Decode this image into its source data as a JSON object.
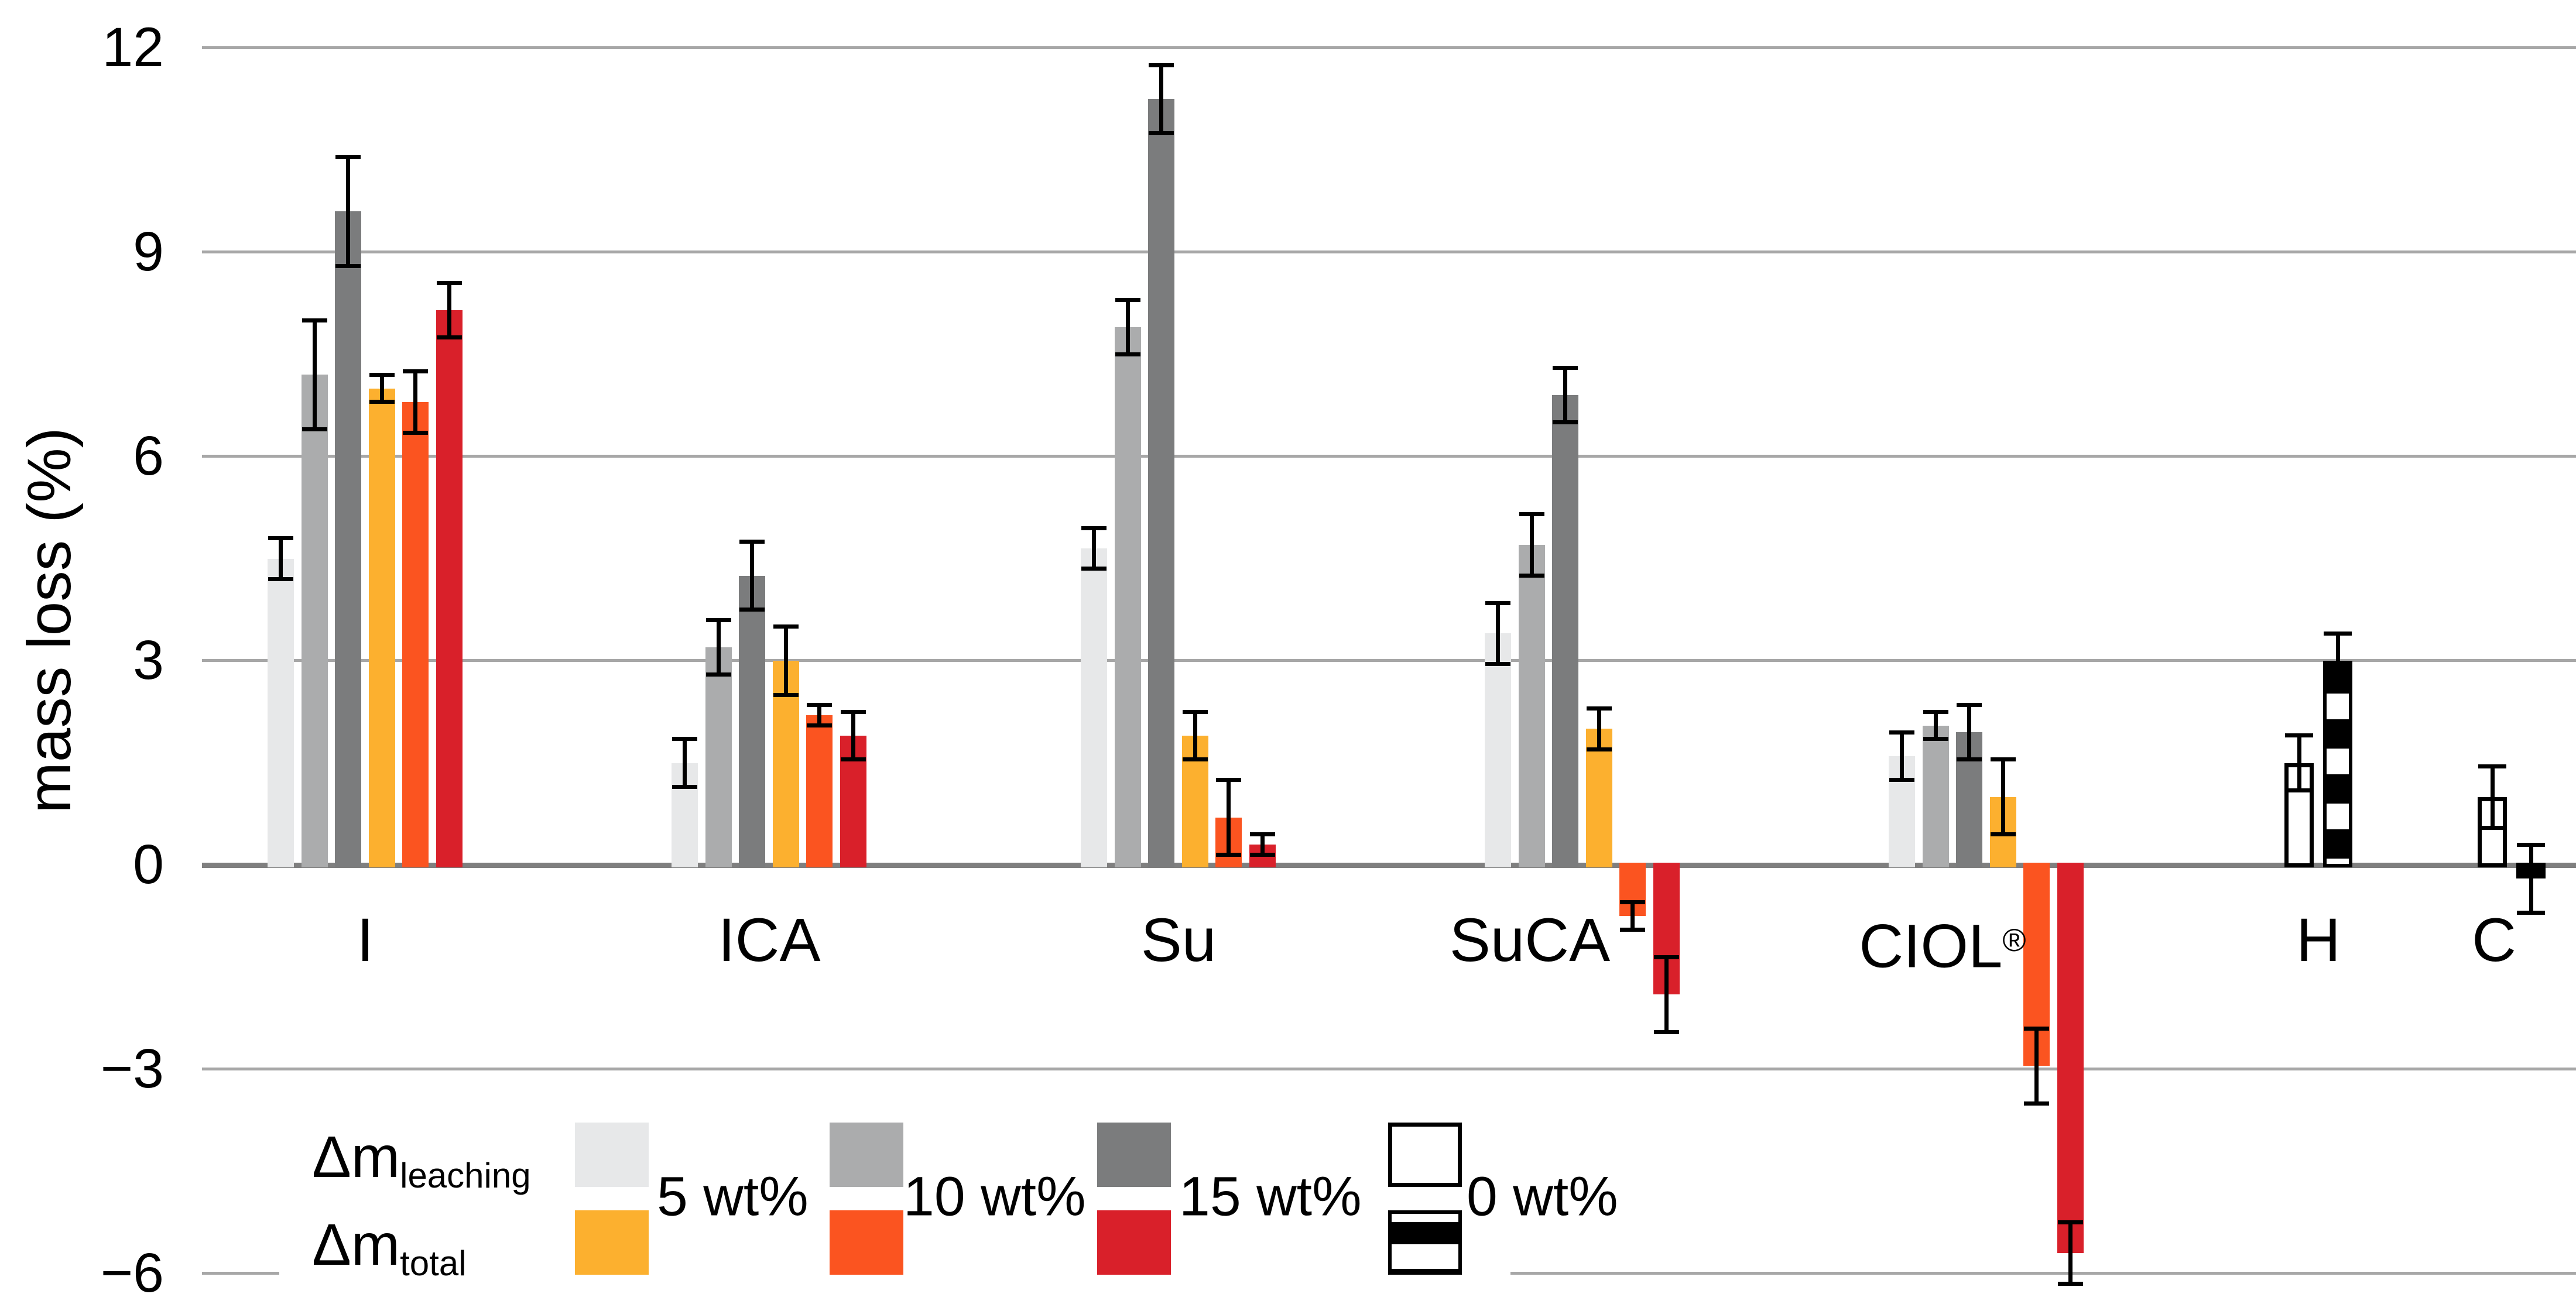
{
  "chart_data": {
    "type": "bar",
    "title": "",
    "xlabel": "",
    "ylabel": "mass loss (%)",
    "ylim": [
      -6.6,
      12.6
    ],
    "grid": true,
    "legend_position": "bottom-left",
    "yticks": [
      {
        "v": 12,
        "label": "12"
      },
      {
        "v": 9,
        "label": "9"
      },
      {
        "v": 6,
        "label": "6"
      },
      {
        "v": 3,
        "label": "3"
      },
      {
        "v": 0,
        "label": "0"
      },
      {
        "v": -3,
        "label": "−3"
      },
      {
        "v": -6,
        "label": "−6"
      }
    ],
    "series": [
      {
        "id": "leaching-5",
        "name": "Δm leaching, 5 wt%",
        "color": "#E7E8E9",
        "style": "solid"
      },
      {
        "id": "leaching-10",
        "name": "Δm leaching, 10 wt%",
        "color": "#ABACAD",
        "style": "solid"
      },
      {
        "id": "leaching-15",
        "name": "Δm leaching, 15 wt%",
        "color": "#7B7C7D",
        "style": "solid"
      },
      {
        "id": "total-5",
        "name": "Δm total, 5 wt%",
        "color": "#FCB02F",
        "style": "solid"
      },
      {
        "id": "total-10",
        "name": "Δm total, 10 wt%",
        "color": "#FB5420",
        "style": "solid"
      },
      {
        "id": "total-15",
        "name": "Δm total, 15 wt%",
        "color": "#D9202A",
        "style": "solid"
      },
      {
        "id": "leaching-0",
        "name": "Δm leaching, 0 wt%",
        "color": "#FFFFFF",
        "style": "outline"
      },
      {
        "id": "total-0",
        "name": "Δm total, 0 wt%",
        "color": "#000000",
        "style": "stripes"
      }
    ],
    "groups": [
      {
        "label": "I",
        "bars": [
          {
            "series": "leaching-5",
            "value": 4.5,
            "error": 0.3
          },
          {
            "series": "leaching-10",
            "value": 7.2,
            "error": 0.8
          },
          {
            "series": "leaching-15",
            "value": 9.6,
            "error": 0.8
          },
          {
            "series": "total-5",
            "value": 7.0,
            "error": 0.2
          },
          {
            "series": "total-10",
            "value": 6.8,
            "error": 0.45
          },
          {
            "series": "total-15",
            "value": 8.15,
            "error": 0.4
          }
        ]
      },
      {
        "label": "ICA",
        "bars": [
          {
            "series": "leaching-5",
            "value": 1.5,
            "error": 0.35
          },
          {
            "series": "leaching-10",
            "value": 3.2,
            "error": 0.4
          },
          {
            "series": "leaching-15",
            "value": 4.25,
            "error": 0.5
          },
          {
            "series": "total-5",
            "value": 3.0,
            "error": 0.5
          },
          {
            "series": "total-10",
            "value": 2.2,
            "error": 0.15
          },
          {
            "series": "total-15",
            "value": 1.9,
            "error": 0.35
          }
        ]
      },
      {
        "label": "Su",
        "bars": [
          {
            "series": "leaching-5",
            "value": 4.65,
            "error": 0.3
          },
          {
            "series": "leaching-10",
            "value": 7.9,
            "error": 0.4
          },
          {
            "series": "leaching-15",
            "value": 11.25,
            "error": 0.5
          },
          {
            "series": "total-5",
            "value": 1.9,
            "error": 0.35
          },
          {
            "series": "total-10",
            "value": 0.7,
            "error": 0.55
          },
          {
            "series": "total-15",
            "value": 0.3,
            "error": 0.15
          }
        ]
      },
      {
        "label": "SuCA",
        "bars": [
          {
            "series": "leaching-5",
            "value": 3.4,
            "error": 0.45
          },
          {
            "series": "leaching-10",
            "value": 4.7,
            "error": 0.45
          },
          {
            "series": "leaching-15",
            "value": 6.9,
            "error": 0.4
          },
          {
            "series": "total-5",
            "value": 2.0,
            "error": 0.3
          },
          {
            "series": "total-10",
            "value": -0.75,
            "error": 0.2
          },
          {
            "series": "total-15",
            "value": -1.9,
            "error": 0.55
          }
        ]
      },
      {
        "label": "CIOL",
        "label_sup": "®",
        "bars": [
          {
            "series": "leaching-5",
            "value": 1.6,
            "error": 0.35
          },
          {
            "series": "leaching-10",
            "value": 2.05,
            "error": 0.2
          },
          {
            "series": "leaching-15",
            "value": 1.95,
            "error": 0.4
          },
          {
            "series": "total-5",
            "value": 1.0,
            "error": 0.55
          },
          {
            "series": "total-10",
            "value": -2.95,
            "error": 0.55
          },
          {
            "series": "total-15",
            "value": -5.7,
            "error": 0.45
          }
        ]
      },
      {
        "label": "H",
        "bars": [
          {
            "series": "leaching-0",
            "value": 1.5,
            "error": 0.4
          },
          {
            "series": "total-0",
            "value": 3.0,
            "error": 0.4
          }
        ]
      },
      {
        "label": "C",
        "bars": [
          {
            "series": "leaching-0",
            "value": 1.0,
            "error": 0.45
          },
          {
            "series": "total-0",
            "value": -0.2,
            "error": 0.5
          }
        ]
      }
    ]
  },
  "legend": {
    "rows": [
      {
        "main": "Δm",
        "sub": "leaching"
      },
      {
        "main": "Δm",
        "sub": "total"
      }
    ],
    "entries": [
      {
        "label": "5 wt%",
        "top": "leaching-5",
        "bottom": "total-5"
      },
      {
        "label": "10 wt%",
        "top": "leaching-10",
        "bottom": "total-10"
      },
      {
        "label": "15 wt%",
        "top": "leaching-15",
        "bottom": "total-15"
      },
      {
        "label": "0 wt%",
        "top": "leaching-0",
        "bottom": "total-0"
      }
    ]
  },
  "colors": {
    "gridline": "#A7A7A7",
    "baseline": "#7F7F7F",
    "error_bar": "#000000",
    "background": "#FFFFFF",
    "text": "#000000"
  }
}
